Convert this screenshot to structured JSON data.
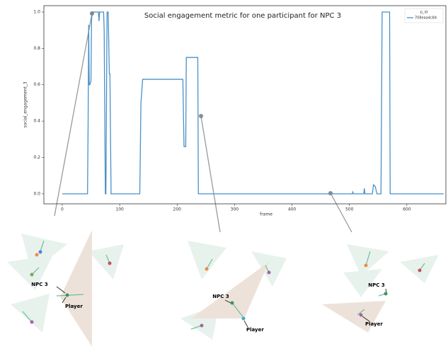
{
  "chart_data": {
    "type": "line",
    "title": "Social engagement metric for one participant for NPC 3",
    "xlabel": "frame",
    "ylabel": "social_engagement_3",
    "legend_title": "p_id",
    "series": [
      {
        "name": "708eaa4c84",
        "color": "#4a90c8",
        "x": [
          0,
          44,
          45,
          46,
          47,
          48,
          50,
          51,
          52,
          60,
          63,
          64,
          65,
          72,
          73,
          75,
          76,
          78,
          80,
          82,
          83,
          85,
          87,
          135,
          137,
          140,
          210,
          212,
          215,
          216,
          236,
          237,
          505,
          506,
          507,
          525,
          526,
          527,
          540,
          542,
          545,
          548,
          555,
          557,
          570,
          571,
          664
        ],
        "values": [
          0,
          0,
          0.38,
          0.93,
          0.6,
          0.6,
          0.62,
          0.95,
          1.0,
          1.0,
          1.0,
          0.95,
          1.0,
          1.0,
          0.9,
          0,
          0,
          1.0,
          1.0,
          0.66,
          0.66,
          0,
          0,
          0,
          0.5,
          0.63,
          0.63,
          0.26,
          0.26,
          0.75,
          0.75,
          0,
          0,
          0.01,
          0,
          0,
          0.03,
          0,
          0,
          0.05,
          0.04,
          0,
          0,
          1.0,
          1.0,
          0,
          0
        ]
      }
    ],
    "xlim": [
      -32,
      668
    ],
    "ylim": [
      -0.055,
      1.035
    ],
    "xticks": [
      0,
      100,
      200,
      300,
      400,
      500,
      600
    ],
    "yticks": [
      {
        "value": 0,
        "label": "0.0"
      },
      {
        "value": 0.2,
        "label": "0.2"
      },
      {
        "value": 0.4,
        "label": "0.4"
      },
      {
        "value": 0.6,
        "label": "0.6"
      },
      {
        "value": 0.8,
        "label": "0.8"
      },
      {
        "value": 1.0,
        "label": "1.0"
      }
    ],
    "legend": "upper right"
  },
  "panels": [
    {
      "npc_label": "NPC 3",
      "player_label": "Player"
    },
    {
      "npc_label": "NPC 3",
      "player_label": "Player"
    },
    {
      "npc_label": "NPC 3",
      "player_label": "Player"
    }
  ]
}
